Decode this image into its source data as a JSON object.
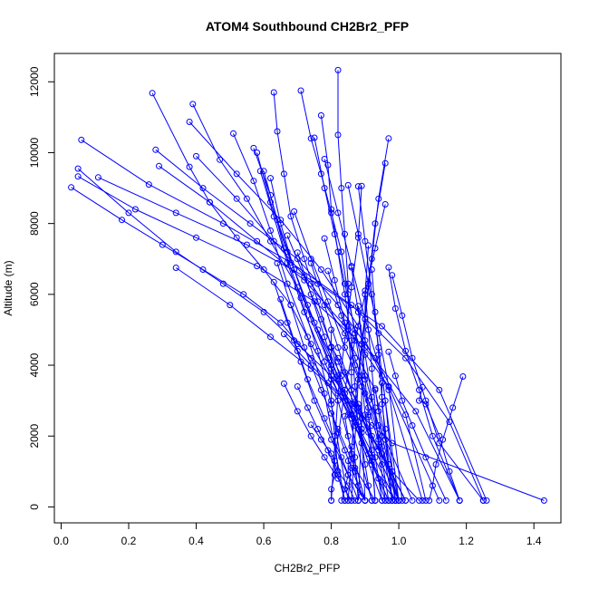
{
  "chart_data": {
    "type": "line",
    "title": "ATOM4 Southbound CH2Br2_PFP",
    "xlabel": "CH2Br2_PFP",
    "ylabel": "Altitude (m)",
    "xlim": [
      -0.02,
      1.48
    ],
    "ylim": [
      -450,
      12800
    ],
    "xticks": [
      "0.0",
      "0.2",
      "0.4",
      "0.6",
      "0.8",
      "1.0",
      "1.2",
      "1.4"
    ],
    "yticks": [
      "0",
      "2000",
      "4000",
      "6000",
      "8000",
      "10000",
      "12000"
    ],
    "grid": false,
    "legend": "none",
    "color": "#0000ff",
    "marker": "open-circle",
    "series": [
      {
        "x": [
          0.27,
          0.38,
          0.44,
          0.52,
          0.6,
          0.68,
          0.74,
          0.8,
          0.86,
          0.91,
          0.95,
          0.99
        ],
        "y": [
          11680,
          9600,
          8600,
          7600,
          6700,
          5700,
          4600,
          3600,
          2500,
          1500,
          700,
          180
        ]
      },
      {
        "x": [
          0.39,
          0.47,
          0.55,
          0.62,
          0.7,
          0.76,
          0.83,
          0.89,
          0.95,
          1.0
        ],
        "y": [
          11370,
          9800,
          8700,
          7500,
          6200,
          5000,
          3700,
          2500,
          1200,
          180
        ]
      },
      {
        "x": [
          0.63,
          0.64,
          0.66,
          0.68,
          0.72,
          0.76,
          0.8,
          0.84,
          0.88,
          0.92,
          0.97
        ],
        "y": [
          11700,
          10600,
          9400,
          8200,
          7000,
          5800,
          4500,
          3200,
          2200,
          1200,
          180
        ]
      },
      {
        "x": [
          0.71,
          0.74,
          0.77,
          0.8,
          0.83,
          0.85,
          0.87,
          0.89,
          0.9,
          0.92,
          0.93
        ],
        "y": [
          11750,
          10400,
          9400,
          8300,
          7200,
          6000,
          4900,
          3700,
          2600,
          1400,
          180
        ]
      },
      {
        "x": [
          0.82,
          0.82,
          0.83,
          0.84,
          0.85,
          0.85,
          0.86,
          0.86,
          0.87,
          0.88
        ],
        "y": [
          12330,
          10500,
          9000,
          7700,
          6300,
          5100,
          3800,
          2600,
          1400,
          180
        ]
      },
      {
        "x": [
          0.77,
          0.79,
          0.8,
          0.82,
          0.84,
          0.86,
          0.87,
          0.89,
          0.9
        ],
        "y": [
          11050,
          9650,
          8400,
          7200,
          6000,
          4700,
          3400,
          2200,
          180
        ]
      },
      {
        "x": [
          0.05,
          0.2,
          0.34,
          0.48,
          0.6,
          0.7,
          0.8,
          0.88,
          0.95,
          1.02
        ],
        "y": [
          9550,
          8300,
          7200,
          6300,
          5500,
          4600,
          3700,
          2700,
          1500,
          180
        ]
      },
      {
        "x": [
          0.03,
          0.18,
          0.3,
          0.42,
          0.54,
          0.65,
          0.74,
          0.82,
          0.9
        ],
        "y": [
          9020,
          8100,
          7400,
          6700,
          6000,
          5200,
          4200,
          3000,
          180
        ]
      },
      {
        "x": [
          0.05,
          0.22,
          0.4,
          0.58,
          0.75,
          0.9,
          1.05,
          1.18
        ],
        "y": [
          9330,
          8400,
          7600,
          6800,
          5800,
          4500,
          2700,
          180
        ]
      },
      {
        "x": [
          0.06,
          0.26,
          0.48,
          0.68,
          0.86,
          1.02,
          1.15,
          1.25
        ],
        "y": [
          10360,
          9100,
          8000,
          6900,
          5700,
          4200,
          2400,
          180
        ]
      },
      {
        "x": [
          0.11,
          0.34,
          0.55,
          0.76,
          0.95,
          1.12,
          1.26
        ],
        "y": [
          9300,
          8300,
          7400,
          6300,
          5100,
          3300,
          180
        ]
      },
      {
        "x": [
          0.28,
          0.42,
          0.56,
          0.7,
          0.82,
          0.93,
          1.02,
          1.08
        ],
        "y": [
          10080,
          9000,
          8000,
          7000,
          5700,
          4200,
          2600,
          180
        ]
      },
      {
        "x": [
          0.29,
          0.44,
          0.58,
          0.72,
          0.85,
          0.97,
          1.12
        ],
        "y": [
          9620,
          8600,
          7500,
          6400,
          5000,
          3400,
          180
        ]
      },
      {
        "x": [
          0.34,
          0.5,
          0.62,
          0.74,
          0.84,
          0.92,
          0.98,
          1.43
        ],
        "y": [
          6750,
          5700,
          4800,
          3900,
          3000,
          2300,
          1800,
          180
        ]
      },
      {
        "x": [
          0.38,
          0.52,
          0.65,
          0.77,
          0.88,
          0.97,
          1.07
        ],
        "y": [
          10870,
          9400,
          8100,
          6700,
          5100,
          3300,
          180
        ]
      },
      {
        "x": [
          0.4,
          0.52,
          0.63,
          0.74,
          0.84,
          0.93,
          1.0
        ],
        "y": [
          9900,
          8700,
          7500,
          6300,
          4900,
          3300,
          180
        ]
      },
      {
        "x": [
          0.51,
          0.57,
          0.62,
          0.67,
          0.73,
          0.78,
          0.84
        ],
        "y": [
          10540,
          9200,
          7800,
          6300,
          4800,
          3200,
          180
        ]
      },
      {
        "x": [
          0.57,
          0.62,
          0.66,
          0.71,
          0.76,
          0.8,
          0.85
        ],
        "y": [
          10130,
          8800,
          7300,
          5900,
          4400,
          2900,
          180
        ]
      },
      {
        "x": [
          0.59,
          0.63,
          0.67,
          0.72,
          0.78,
          0.85,
          0.92
        ],
        "y": [
          9480,
          8200,
          6900,
          5500,
          4100,
          2600,
          180
        ]
      },
      {
        "x": [
          0.62,
          0.65,
          0.69,
          0.74,
          0.8,
          0.87,
          0.97
        ],
        "y": [
          9280,
          8000,
          6700,
          5300,
          3900,
          2300,
          180
        ]
      },
      {
        "x": [
          0.58,
          0.62,
          0.67,
          0.73,
          0.79,
          0.86,
          0.95
        ],
        "y": [
          10000,
          8600,
          7200,
          5700,
          4200,
          2600,
          180
        ]
      },
      {
        "x": [
          0.6,
          0.64,
          0.69,
          0.75,
          0.82,
          0.89,
          0.99
        ],
        "y": [
          9480,
          8100,
          6700,
          5200,
          3700,
          2100,
          180
        ]
      },
      {
        "x": [
          0.75,
          0.78,
          0.81,
          0.84,
          0.87,
          0.9,
          0.94,
          0.98
        ],
        "y": [
          10420,
          9000,
          7700,
          6300,
          5000,
          3700,
          2300,
          180
        ]
      },
      {
        "x": [
          0.97,
          0.94,
          0.92,
          0.9,
          0.88,
          0.86
        ],
        "y": [
          10400,
          8700,
          7000,
          5300,
          3600,
          180
        ]
      },
      {
        "x": [
          0.96,
          0.93,
          0.91,
          0.89,
          0.87,
          0.85
        ],
        "y": [
          9700,
          8000,
          6300,
          4600,
          2900,
          180
        ]
      },
      {
        "x": [
          0.89,
          0.88,
          0.86,
          0.84,
          0.82,
          0.8
        ],
        "y": [
          9060,
          7600,
          6200,
          4700,
          3200,
          180
        ]
      },
      {
        "x": [
          0.88,
          0.9,
          0.92,
          0.94,
          0.96,
          0.99
        ],
        "y": [
          9050,
          7500,
          6000,
          4500,
          3000,
          180
        ]
      },
      {
        "x": [
          0.85,
          0.88,
          0.91,
          0.94,
          0.97,
          1.01
        ],
        "y": [
          9080,
          7700,
          6300,
          4900,
          3400,
          180
        ]
      },
      {
        "x": [
          0.78,
          0.82,
          0.86,
          0.9,
          0.95,
          1.0
        ],
        "y": [
          9820,
          8300,
          6800,
          5300,
          3700,
          180
        ]
      },
      {
        "x": [
          0.96,
          0.93,
          0.9,
          0.87,
          0.84,
          0.81
        ],
        "y": [
          8540,
          7300,
          6000,
          4700,
          3300,
          1300
        ]
      },
      {
        "x": [
          0.91,
          0.9,
          0.9,
          0.89,
          0.89,
          0.88
        ],
        "y": [
          7380,
          6000,
          4700,
          3400,
          2200,
          180
        ]
      },
      {
        "x": [
          0.69,
          0.74,
          0.79,
          0.84,
          0.9,
          0.96,
          1.04
        ],
        "y": [
          8340,
          7000,
          5800,
          4500,
          3200,
          1900,
          180
        ]
      },
      {
        "x": [
          0.67,
          0.72,
          0.77,
          0.82,
          0.88,
          0.94,
          1.02
        ],
        "y": [
          7660,
          6500,
          5300,
          4100,
          2900,
          1600,
          180
        ]
      },
      {
        "x": [
          0.78,
          0.81,
          0.84,
          0.87,
          0.91,
          0.95,
          1.0
        ],
        "y": [
          7580,
          6400,
          5200,
          4000,
          2800,
          1500,
          180
        ]
      },
      {
        "x": [
          0.7,
          0.74,
          0.78,
          0.82,
          0.87,
          0.92,
          0.96
        ],
        "y": [
          7180,
          6000,
          4800,
          3600,
          2500,
          1300,
          180
        ]
      },
      {
        "x": [
          0.64,
          0.68,
          0.72,
          0.77,
          0.82,
          0.87,
          0.93
        ],
        "y": [
          6880,
          5700,
          4500,
          3300,
          2200,
          1100,
          180
        ]
      },
      {
        "x": [
          0.63,
          0.67,
          0.71,
          0.75,
          0.8,
          0.85,
          0.9
        ],
        "y": [
          6350,
          5200,
          4100,
          3000,
          1900,
          900,
          180
        ]
      },
      {
        "x": [
          0.65,
          0.69,
          0.73,
          0.78,
          0.83,
          0.88
        ],
        "y": [
          5860,
          4700,
          3600,
          2500,
          1400,
          180
        ]
      },
      {
        "x": [
          0.74,
          0.78,
          0.82,
          0.86,
          0.91,
          0.98,
          1.06
        ],
        "y": [
          6880,
          5700,
          4500,
          3300,
          2100,
          1000,
          180
        ]
      },
      {
        "x": [
          0.79,
          0.83,
          0.87,
          0.91,
          0.95,
          1.0
        ],
        "y": [
          6660,
          5400,
          4200,
          3000,
          1700,
          180
        ]
      },
      {
        "x": [
          0.86,
          0.88,
          0.9,
          0.92,
          0.94,
          0.97
        ],
        "y": [
          6760,
          5500,
          4300,
          3100,
          1900,
          180
        ]
      },
      {
        "x": [
          0.97,
          0.99,
          1.02,
          1.06,
          1.1,
          1.18
        ],
        "y": [
          6760,
          5600,
          4400,
          3300,
          2000,
          180
        ]
      },
      {
        "x": [
          0.98,
          1.01,
          1.04,
          1.08,
          1.12,
          1.25
        ],
        "y": [
          6540,
          5400,
          4200,
          3000,
          1800,
          180
        ]
      },
      {
        "x": [
          0.92,
          0.93,
          0.94,
          0.95,
          0.96,
          0.98
        ],
        "y": [
          6700,
          5500,
          4300,
          3100,
          1900,
          180
        ]
      },
      {
        "x": [
          0.9,
          0.91,
          0.92,
          0.93,
          0.94,
          0.96
        ],
        "y": [
          6100,
          5000,
          3900,
          2800,
          1700,
          180
        ]
      },
      {
        "x": [
          0.88,
          0.89,
          0.9,
          0.91,
          0.92,
          0.93
        ],
        "y": [
          5670,
          4600,
          3600,
          2600,
          1600,
          180
        ]
      },
      {
        "x": [
          0.97,
          0.99,
          1.01,
          1.04,
          1.08,
          1.14
        ],
        "y": [
          4380,
          3700,
          3000,
          2300,
          1400,
          180
        ]
      },
      {
        "x": [
          1.07,
          1.06,
          1.08,
          1.12,
          1.15,
          1.18
        ],
        "y": [
          3380,
          3000,
          2900,
          2000,
          1000,
          180
        ]
      },
      {
        "x": [
          1.19,
          1.16,
          1.13,
          1.11,
          1.1,
          1.09
        ],
        "y": [
          3680,
          2800,
          1900,
          1200,
          600,
          180
        ]
      },
      {
        "x": [
          0.93,
          0.94,
          0.95,
          0.97,
          0.99
        ],
        "y": [
          3340,
          2700,
          2000,
          1200,
          180
        ]
      },
      {
        "x": [
          0.95,
          0.95,
          0.96,
          0.97,
          0.98
        ],
        "y": [
          3500,
          2900,
          2200,
          1200,
          180
        ]
      },
      {
        "x": [
          0.66,
          0.7,
          0.74,
          0.78,
          0.82,
          0.86
        ],
        "y": [
          3480,
          2700,
          2000,
          1400,
          800,
          180
        ]
      },
      {
        "x": [
          0.7,
          0.73,
          0.76,
          0.79,
          0.82,
          0.84
        ],
        "y": [
          3400,
          2800,
          2200,
          1600,
          900,
          180
        ]
      },
      {
        "x": [
          0.74,
          0.77,
          0.8,
          0.82,
          0.85,
          0.87
        ],
        "y": [
          2320,
          1900,
          1500,
          1000,
          600,
          180
        ]
      },
      {
        "x": [
          0.8,
          0.82,
          0.84,
          0.86,
          0.88,
          0.9
        ],
        "y": [
          2640,
          2100,
          1600,
          1100,
          600,
          180
        ]
      },
      {
        "x": [
          0.84,
          0.85,
          0.86,
          0.87,
          0.88,
          0.89
        ],
        "y": [
          2560,
          2000,
          1500,
          1000,
          600,
          300
        ]
      },
      {
        "x": [
          0.87,
          0.88,
          0.89,
          0.9,
          0.91,
          0.92
        ],
        "y": [
          2960,
          2400,
          1800,
          1200,
          600,
          180
        ]
      },
      {
        "x": [
          0.91,
          0.92,
          0.93,
          0.94,
          0.95
        ],
        "y": [
          2540,
          2000,
          1400,
          800,
          180
        ]
      },
      {
        "x": [
          0.86,
          0.85,
          0.85,
          0.84,
          0.83
        ],
        "y": [
          1700,
          1300,
          900,
          500,
          180
        ]
      },
      {
        "x": [
          0.81,
          0.81,
          0.8,
          0.8
        ],
        "y": [
          1300,
          900,
          500,
          180
        ]
      },
      {
        "x": [
          0.8,
          0.8,
          0.8,
          0.81,
          0.82
        ],
        "y": [
          5000,
          4000,
          3000,
          2000,
          1000
        ]
      },
      {
        "x": [
          0.66,
          0.7,
          0.74,
          0.79,
          0.86
        ],
        "y": [
          4880,
          4400,
          4000,
          3500,
          2900
        ]
      },
      {
        "x": [
          0.8,
          0.82,
          0.84,
          0.86,
          0.88
        ],
        "y": [
          4520,
          4200,
          3800,
          3300,
          2800
        ]
      }
    ]
  }
}
